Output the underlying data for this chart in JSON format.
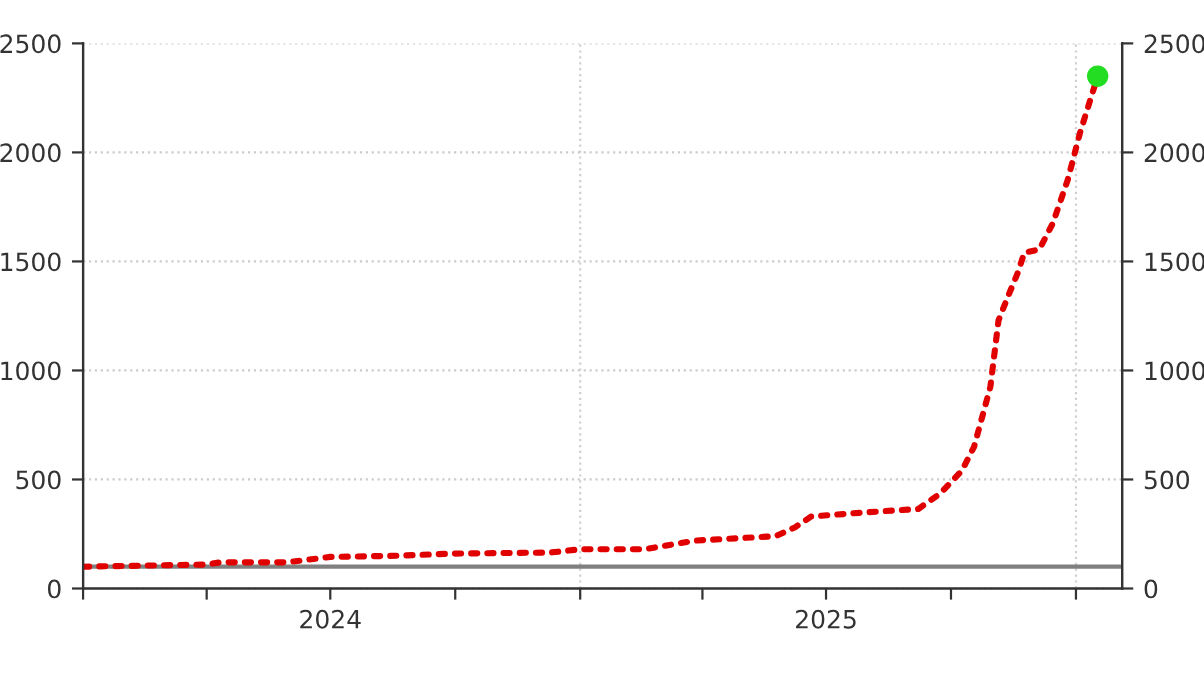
{
  "chart_data": {
    "type": "line",
    "x": [
      "2024-01-01",
      "2024-04-01",
      "2024-04-11",
      "2024-05-30",
      "2024-07-01",
      "2024-08-19",
      "2024-09-28",
      "2024-12-10",
      "2025-01-01",
      "2025-02-17",
      "2025-03-27",
      "2025-05-25",
      "2025-06-08",
      "2025-06-20",
      "2025-08-01",
      "2025-09-07",
      "2025-09-23",
      "2025-10-09",
      "2025-10-18",
      "2025-10-30",
      "2025-11-05",
      "2025-11-12",
      "2025-11-19",
      "2025-11-24",
      "2025-12-05",
      "2025-12-15",
      "2025-12-26",
      "2026-01-04",
      "2026-01-17"
    ],
    "series": [
      {
        "color": "#e00000",
        "line_style": "dotted",
        "values": [
          100,
          110,
          120,
          120,
          145,
          150,
          160,
          165,
          180,
          180,
          220,
          240,
          280,
          330,
          350,
          365,
          435,
          540,
          650,
          925,
          1230,
          1340,
          1445,
          1540,
          1555,
          1675,
          1875,
          2090,
          2350
        ]
      },
      {
        "type": "scatter",
        "color": "#22dd22",
        "marker": "circle",
        "x": [
          "2026-01-17"
        ],
        "values": [
          2350
        ]
      }
    ],
    "xlim": [
      "2024-01-01",
      "2026-02-04"
    ],
    "xticks": [
      {
        "value": "2024-01-01",
        "label": null
      },
      {
        "value": "2024-04-01",
        "label": null
      },
      {
        "value": "2024-07-01",
        "label": "2024"
      },
      {
        "value": "2024-10-01",
        "label": null
      },
      {
        "value": "2025-01-01",
        "label": null
      },
      {
        "value": "2025-04-01",
        "label": null
      },
      {
        "value": "2025-07-01",
        "label": "2025"
      },
      {
        "value": "2025-10-01",
        "label": null
      },
      {
        "value": "2026-01-01",
        "label": null
      }
    ],
    "ylim": [
      0,
      2500
    ],
    "yticks": [
      0,
      500,
      1000,
      1500,
      2000,
      2500
    ],
    "y2lim": [
      0,
      2500
    ],
    "y2ticks": [
      0,
      500,
      1000,
      1500,
      2000,
      2500
    ],
    "grid": "y",
    "ref_lines": [
      {
        "axis": "y",
        "value": 100,
        "color": "#808080",
        "line_style": "solid"
      },
      {
        "axis": "x",
        "value": "2025-01-01",
        "color": "#d0d0d0",
        "line_style": "dotted"
      },
      {
        "axis": "x",
        "value": "2026-01-01",
        "color": "#d0d0d0",
        "line_style": "dotted"
      }
    ]
  }
}
